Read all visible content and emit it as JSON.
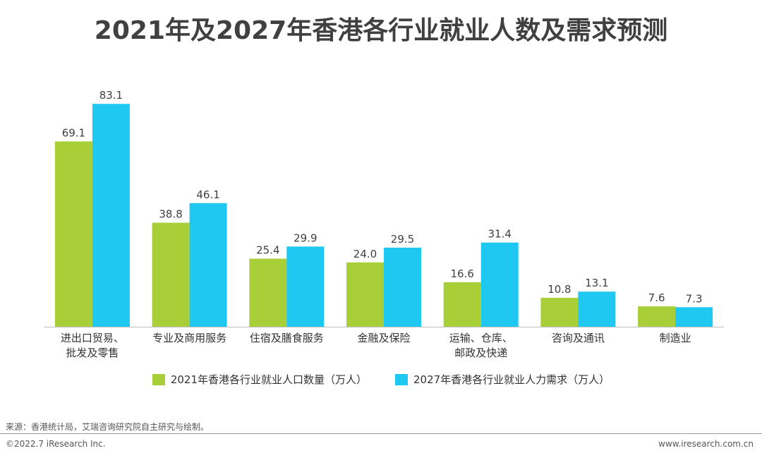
{
  "title": "2021年及2027年香港各行业就业人数及需求预测",
  "chart_data": {
    "type": "bar",
    "categories": [
      [
        "进出口贸易、",
        "批发及零售"
      ],
      [
        "专业及商用服务"
      ],
      [
        "住宿及膳食服务"
      ],
      [
        "金融及保险"
      ],
      [
        "运输、仓库、",
        "邮政及快递"
      ],
      [
        "咨询及通讯"
      ],
      [
        "制造业"
      ]
    ],
    "series": [
      {
        "name": "2021年香港各行业就业人口数量（万人）",
        "color": "#a9cf38",
        "values": [
          69.1,
          38.8,
          25.4,
          24.0,
          16.6,
          10.8,
          7.6
        ],
        "labels": [
          "69.1",
          "38.8",
          "25.4",
          "24.0",
          "16.6",
          "10.8",
          "7.6"
        ]
      },
      {
        "name": "2027年香港各行业就业人力需求（万人）",
        "color": "#1fc8f0",
        "values": [
          83.1,
          46.1,
          29.9,
          29.5,
          31.4,
          13.1,
          7.3
        ],
        "labels": [
          "83.1",
          "46.1",
          "29.9",
          "29.5",
          "31.4",
          "13.1",
          "7.3"
        ]
      }
    ],
    "ylim": [
      0,
      85
    ],
    "grid": false,
    "legend": "bottom"
  },
  "footer": {
    "source": "来源：香港统计局，艾瑞咨询研究院自主研究与绘制。",
    "copyright": "©2022.7 iResearch Inc.",
    "website": "www.iresearch.com.cn"
  }
}
